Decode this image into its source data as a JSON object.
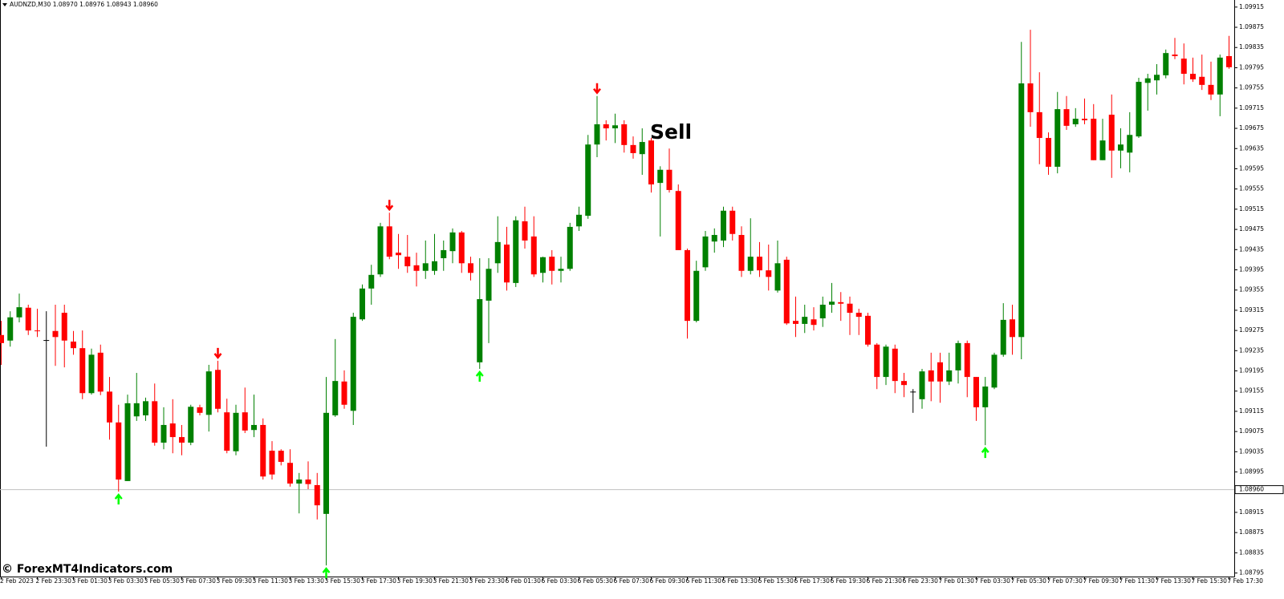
{
  "chart_data": {
    "type": "candlestick",
    "title": "AUDNZD,M30  1.08970 1.08976 1.08943 1.08960",
    "annotation": "Sell",
    "watermark": "© ForexMT4Indicators.com",
    "up_color": "#008000",
    "down_color": "#ff0000",
    "doji_color": "#000000",
    "signal_up_color": "#00ff00",
    "signal_down_color": "#ff0000",
    "categories": [
      "2 Feb 2023",
      null,
      null,
      null,
      "2 Feb 23:30",
      null,
      null,
      null,
      "3 Feb 01:30",
      null,
      null,
      null,
      "3 Feb 03:30",
      null,
      null,
      null,
      "3 Feb 05:30",
      null,
      null,
      null,
      "3 Feb 07:30",
      null,
      null,
      null,
      "3 Feb 09:30",
      null,
      null,
      null,
      "3 Feb 11:30",
      null,
      null,
      null,
      "3 Feb 13:30",
      null,
      null,
      null,
      "3 Feb 15:30",
      null,
      null,
      null,
      "3 Feb 17:30",
      null,
      null,
      null,
      "3 Feb 19:30",
      null,
      null,
      null,
      "3 Feb 21:30",
      null,
      null,
      null,
      "3 Feb 23:30",
      null,
      null,
      null,
      "6 Feb 01:30",
      null,
      null,
      null,
      "6 Feb 03:30",
      null,
      null,
      null,
      "6 Feb 05:30",
      null,
      null,
      null,
      "6 Feb 07:30",
      null,
      null,
      null,
      "6 Feb 09:30",
      null,
      null,
      null,
      "6 Feb 11:30",
      null,
      null,
      null,
      "6 Feb 13:30",
      null,
      null,
      null,
      "6 Feb 15:30",
      null,
      null,
      null,
      "6 Feb 17:30",
      null,
      null,
      null,
      "6 Feb 19:30",
      null,
      null,
      null,
      "6 Feb 21:30",
      null,
      null,
      null,
      "6 Feb 23:30",
      null,
      null,
      null,
      "7 Feb 01:30",
      null,
      null,
      null,
      "7 Feb 03:30",
      null,
      null,
      null,
      "7 Feb 05:30",
      null,
      null,
      null,
      "7 Feb 07:30",
      null,
      null,
      null,
      "7 Feb 09:30",
      null,
      null,
      null,
      "7 Feb 11:30",
      null,
      null,
      null,
      "7 Feb 13:30",
      null,
      null,
      null,
      "7 Feb 15:30",
      null,
      null,
      null,
      "7 Feb 17:30"
    ],
    "open": [
      1.09266,
      1.09255,
      1.09301,
      1.0932,
      1.09275,
      1.09256,
      1.09274,
      1.0931,
      1.09253,
      1.0924,
      1.09151,
      1.09231,
      1.09154,
      1.09093,
      1.08977,
      1.09105,
      1.09107,
      1.09135,
      1.09053,
      1.09091,
      1.09064,
      1.09053,
      1.09123,
      1.09108,
      1.09197,
      1.09113,
      1.09036,
      1.09113,
      1.09078,
      1.09088,
      1.09037,
      1.09037,
      1.09013,
      1.08972,
      1.0898,
      1.08969,
      1.08912,
      1.09107,
      1.09174,
      1.09116,
      1.09297,
      1.09358,
      1.09386,
      1.09481,
      1.09429,
      1.09421,
      1.09404,
      1.09393,
      1.09393,
      1.09418,
      1.09432,
      1.09469,
      1.09408,
      1.09212,
      1.09334,
      1.09408,
      1.09445,
      1.09369,
      1.09491,
      1.09461,
      1.09389,
      1.09421,
      1.09393,
      1.09397,
      1.09481,
      1.09502,
      1.09643,
      1.09683,
      1.09675,
      1.09683,
      1.09642,
      1.09624,
      1.09651,
      1.09567,
      1.09593,
      1.09551,
      1.09434,
      1.09294,
      1.094,
      1.09451,
      1.09453,
      1.09512,
      1.09464,
      1.09393,
      1.09421,
      1.09394,
      1.09354,
      1.09415,
      1.09294,
      1.09288,
      1.09297,
      1.09299,
      1.09326,
      1.09331,
      1.09328,
      1.0931,
      1.09304,
      1.09247,
      1.09183,
      1.09239,
      1.09175,
      1.09154,
      1.09139,
      1.09196,
      1.09212,
      1.09174,
      1.09196,
      1.0925,
      1.09183,
      1.09123,
      1.09162,
      1.09227,
      1.09297,
      1.09262,
      1.09764,
      1.09707,
      1.09656,
      1.09599,
      1.09713,
      1.09683,
      1.09694,
      1.09694,
      1.09612,
      1.09702,
      1.09631,
      1.09627,
      1.09659,
      1.09765,
      1.0977,
      1.0978,
      1.09821,
      1.09813,
      1.09783,
      1.09777,
      1.09761,
      1.09742,
      1.09818
    ],
    "high": [
      1.09294,
      1.09313,
      1.09348,
      1.09326,
      1.09318,
      1.09313,
      1.09326,
      1.09326,
      1.09274,
      1.09275,
      1.09239,
      1.09247,
      1.09183,
      1.09128,
      1.09148,
      1.09191,
      1.09142,
      1.0917,
      1.09123,
      1.09139,
      1.09088,
      1.09128,
      1.09128,
      1.09207,
      1.09215,
      1.0914,
      1.09128,
      1.09162,
      1.09148,
      1.09101,
      1.09056,
      1.0904,
      1.0904,
      1.08993,
      1.09016,
      1.08993,
      1.09183,
      1.09258,
      1.09196,
      1.0931,
      1.09366,
      1.09405,
      1.09488,
      1.09508,
      1.09466,
      1.09464,
      1.09429,
      1.09453,
      1.09466,
      1.09453,
      1.09477,
      1.09472,
      1.09421,
      1.09418,
      1.09418,
      1.09501,
      1.0948,
      1.09501,
      1.0952,
      1.09501,
      1.09421,
      1.09434,
      1.09421,
      1.09488,
      1.0952,
      1.09662,
      1.09739,
      1.09691,
      1.09704,
      1.09691,
      1.09659,
      1.09675,
      1.09656,
      1.096,
      1.09635,
      1.09564,
      1.09437,
      1.09413,
      1.09472,
      1.09477,
      1.0952,
      1.0952,
      1.09481,
      1.09497,
      1.0945,
      1.09445,
      1.09453,
      1.09421,
      1.09342,
      1.09326,
      1.09321,
      1.09342,
      1.09369,
      1.09351,
      1.09342,
      1.09318,
      1.0931,
      1.0925,
      1.09247,
      1.09247,
      1.09191,
      1.09159,
      1.09199,
      1.09231,
      1.09231,
      1.09231,
      1.09255,
      1.09255,
      1.09183,
      1.09183,
      1.09231,
      1.09329,
      1.09326,
      1.09846,
      1.0987,
      1.09786,
      1.09667,
      1.09747,
      1.09739,
      1.09715,
      1.09734,
      1.09723,
      1.09694,
      1.09742,
      1.09675,
      1.09707,
      1.09775,
      1.09783,
      1.09802,
      1.09831,
      1.09854,
      1.09843,
      1.09815,
      1.09821,
      1.09807,
      1.09821,
      1.09858
    ],
    "low": [
      1.09207,
      1.09243,
      1.09291,
      1.09266,
      1.09262,
      1.09045,
      1.09205,
      1.09202,
      1.09227,
      1.09139,
      1.09148,
      1.09147,
      1.09059,
      1.08956,
      1.08977,
      1.09096,
      1.09096,
      1.09047,
      1.0904,
      1.09032,
      1.09028,
      1.09048,
      1.09107,
      1.09075,
      1.09113,
      1.09032,
      1.09028,
      1.09072,
      1.09064,
      1.0898,
      1.0898,
      1.09008,
      1.08966,
      1.08913,
      1.08961,
      1.08901,
      1.0881,
      1.09104,
      1.0912,
      1.09088,
      1.09294,
      1.09326,
      1.09381,
      1.09416,
      1.09397,
      1.09389,
      1.09362,
      1.09377,
      1.09385,
      1.09393,
      1.09408,
      1.09389,
      1.09374,
      1.09199,
      1.0925,
      1.09389,
      1.09354,
      1.09361,
      1.09437,
      1.09381,
      1.0937,
      1.09366,
      1.0937,
      1.09393,
      1.09472,
      1.09496,
      1.09618,
      1.09651,
      1.09646,
      1.09627,
      1.09615,
      1.09583,
      1.09548,
      1.09461,
      1.09548,
      1.09434,
      1.09259,
      1.09291,
      1.09393,
      1.09429,
      1.0944,
      1.09453,
      1.09381,
      1.09386,
      1.09381,
      1.09354,
      1.0935,
      1.09286,
      1.09262,
      1.0927,
      1.09275,
      1.09282,
      1.0931,
      1.09294,
      1.09266,
      1.09266,
      1.09243,
      1.09159,
      1.09167,
      1.09151,
      1.09143,
      1.09112,
      1.0912,
      1.09135,
      1.09132,
      1.09167,
      1.0917,
      1.09143,
      1.09096,
      1.09048,
      1.09159,
      1.09223,
      1.09227,
      1.09218,
      1.09678,
      1.09604,
      1.09583,
      1.09586,
      1.09672,
      1.09678,
      1.09683,
      1.09612,
      1.09612,
      1.09577,
      1.09596,
      1.09588,
      1.09656,
      1.0971,
      1.09742,
      1.09774,
      1.09812,
      1.09762,
      1.09767,
      1.09751,
      1.09731,
      1.09699,
      1.09793
    ],
    "close": [
      1.0925,
      1.09301,
      1.09321,
      1.09275,
      1.09274,
      1.09256,
      1.09262,
      1.09255,
      1.0924,
      1.09151,
      1.09227,
      1.09154,
      1.09093,
      1.0898,
      1.09131,
      1.09131,
      1.09135,
      1.09053,
      1.09088,
      1.09064,
      1.09053,
      1.09124,
      1.09112,
      1.09194,
      1.0912,
      1.09037,
      1.09112,
      1.09077,
      1.09088,
      1.08986,
      1.0899,
      1.09015,
      1.08972,
      1.0898,
      1.08971,
      1.08929,
      1.09112,
      1.09175,
      1.09128,
      1.09302,
      1.09358,
      1.09385,
      1.09481,
      1.09421,
      1.09424,
      1.09402,
      1.09393,
      1.09408,
      1.09412,
      1.09434,
      1.09469,
      1.09408,
      1.09389,
      1.09337,
      1.09397,
      1.0945,
      1.0937,
      1.09493,
      1.09453,
      1.09386,
      1.0942,
      1.09393,
      1.09397,
      1.0948,
      1.09504,
      1.09643,
      1.09683,
      1.09675,
      1.09681,
      1.09642,
      1.09626,
      1.09648,
      1.09564,
      1.09593,
      1.09553,
      1.09434,
      1.09294,
      1.09393,
      1.09461,
      1.09464,
      1.09512,
      1.09466,
      1.09393,
      1.09421,
      1.09394,
      1.09381,
      1.09408,
      1.09289,
      1.09288,
      1.09302,
      1.09286,
      1.09326,
      1.09332,
      1.09328,
      1.0931,
      1.09302,
      1.09247,
      1.09183,
      1.09243,
      1.09175,
      1.09167,
      1.09154,
      1.09194,
      1.09174,
      1.09174,
      1.09196,
      1.0925,
      1.09183,
      1.09123,
      1.09164,
      1.09227,
      1.09296,
      1.09262,
      1.09764,
      1.09707,
      1.09656,
      1.09599,
      1.09713,
      1.0968,
      1.09694,
      1.09691,
      1.09612,
      1.09651,
      1.09631,
      1.09643,
      1.09662,
      1.09767,
      1.09774,
      1.09781,
      1.09824,
      1.09818,
      1.09783,
      1.09772,
      1.09761,
      1.09742,
      1.09815,
      1.09796
    ],
    "signals": [
      {
        "index": 13,
        "direction": "up"
      },
      {
        "index": 24,
        "direction": "down"
      },
      {
        "index": 36,
        "direction": "up"
      },
      {
        "index": 43,
        "direction": "down"
      },
      {
        "index": 53,
        "direction": "up"
      },
      {
        "index": 66,
        "direction": "down"
      },
      {
        "index": 109,
        "direction": "up"
      }
    ],
    "current_price": {
      "value": 1.0896,
      "label": "1.08960"
    },
    "ylim": [
      1.08788,
      1.09929
    ],
    "yticks": [
      1.09915,
      1.09875,
      1.09835,
      1.09795,
      1.09755,
      1.09715,
      1.09675,
      1.09635,
      1.09595,
      1.09555,
      1.09515,
      1.09475,
      1.09435,
      1.09395,
      1.09355,
      1.09315,
      1.09275,
      1.09235,
      1.09195,
      1.09155,
      1.09115,
      1.09075,
      1.09035,
      1.08995,
      1.08955,
      1.08915,
      1.08875,
      1.08835,
      1.08795
    ]
  }
}
